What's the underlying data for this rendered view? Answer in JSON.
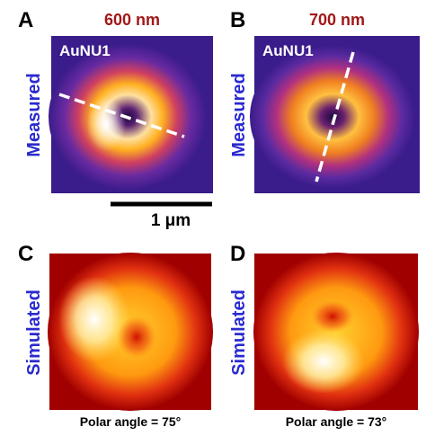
{
  "panels": [
    {
      "letter": "A",
      "title": "600 nm",
      "sample": "AuNU1",
      "row_label": "Measured"
    },
    {
      "letter": "B",
      "title": "700 nm",
      "sample": "AuNU1",
      "row_label": "Measured"
    },
    {
      "letter": "C",
      "row_label": "Simulated",
      "caption": "Polar angle = 75°"
    },
    {
      "letter": "D",
      "row_label": "Simulated",
      "caption": "Polar angle = 73°"
    }
  ],
  "scale_bar": {
    "label": "1 μm"
  }
}
